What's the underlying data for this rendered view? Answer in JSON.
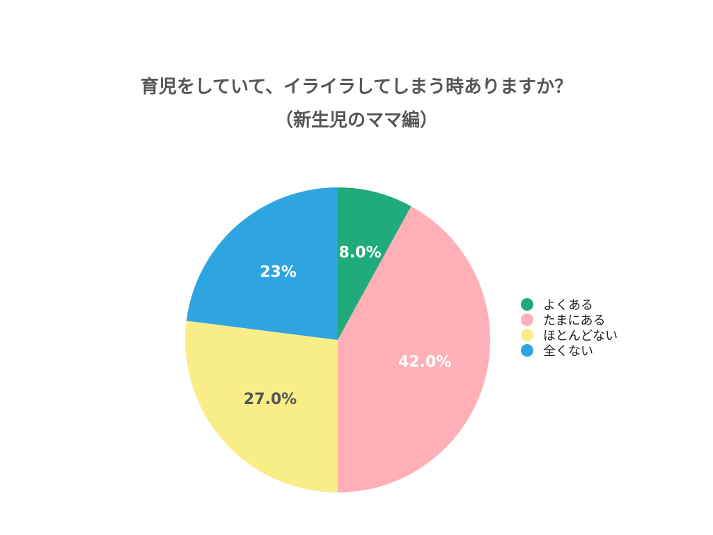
{
  "chart_data": {
    "type": "pie",
    "title": [
      "育児をしていて、イライラしてしまう時ありますか？",
      "（新生児のママ編）"
    ],
    "categories": [
      "よくある",
      "たまにある",
      "ほとんどない",
      "全くない"
    ],
    "values": [
      8.0,
      42.0,
      27.0,
      23.0
    ],
    "labels": [
      "8.0%",
      "42.0%",
      "27.0%",
      "23%"
    ],
    "colors": [
      "#21ab7c",
      "#ffb0b6",
      "#f9ed88",
      "#2ea5e0"
    ],
    "label_colors": [
      "#ffffff",
      "#ffffff",
      "#555555",
      "#ffffff"
    ],
    "start_angle": "12 o'clock",
    "direction": "clockwise",
    "legend_position": "right"
  }
}
